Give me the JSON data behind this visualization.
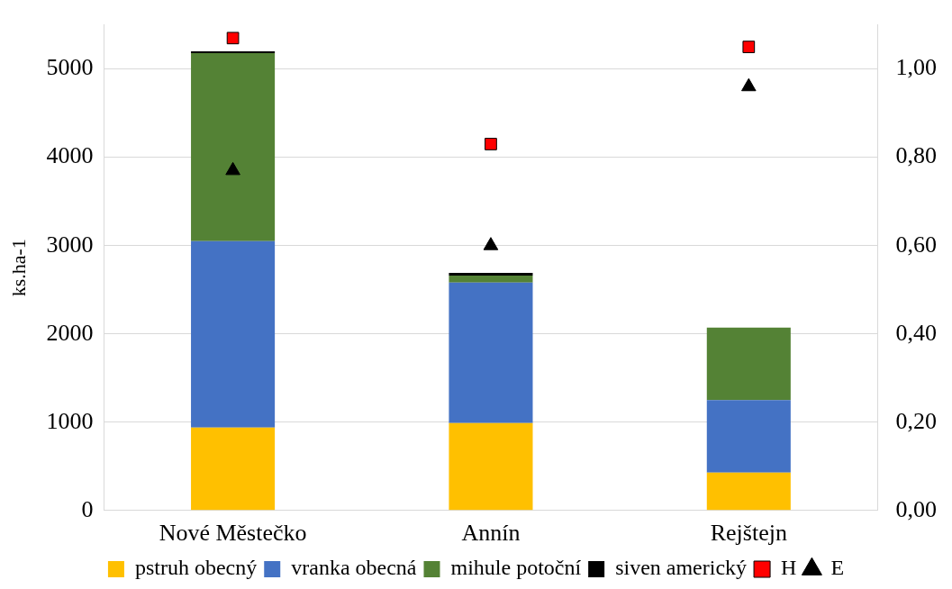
{
  "chart_data": {
    "type": "bar",
    "stacked": true,
    "ylabel": "ks.ha-1",
    "categories": [
      "Nové Městečko",
      "Annín",
      "Rejštejn"
    ],
    "series": [
      {
        "name": "pstruh obecný",
        "color": "#ffc000",
        "values": [
          940,
          990,
          430
        ]
      },
      {
        "name": "vranka obecná",
        "color": "#4472c4",
        "values": [
          2110,
          1590,
          820
        ]
      },
      {
        "name": "mihule potoční",
        "color": "#548235",
        "values": [
          2130,
          80,
          820
        ]
      },
      {
        "name": "siven americký",
        "color": "#000000",
        "values": [
          20,
          30,
          0
        ]
      },
      {
        "name": "H",
        "type": "scatter",
        "axis": "y2",
        "marker": "square",
        "color": "#ff0000",
        "x": [
          "Nové Městečko",
          "Annín",
          "Rejštejn"
        ],
        "values": [
          1.07,
          0.83,
          1.05
        ]
      },
      {
        "name": "E",
        "type": "scatter",
        "axis": "y2",
        "marker": "triangle",
        "color": "#000000",
        "x": [
          "Nové Městečko",
          "Annín",
          "Rejštejn"
        ],
        "values": [
          0.77,
          0.6,
          0.96
        ]
      }
    ],
    "ylim": [
      0,
      5500
    ],
    "yticks": [
      0,
      1000,
      2000,
      3000,
      4000,
      5000
    ],
    "y2lim": [
      0,
      1.1
    ],
    "y2ticks": [
      {
        "value": 0,
        "label": "0,00"
      },
      {
        "value": 0.2,
        "label": "0,20"
      },
      {
        "value": 0.4,
        "label": "0,40"
      },
      {
        "value": 0.6,
        "label": "0,60"
      },
      {
        "value": 0.8,
        "label": "0,80"
      },
      {
        "value": 1,
        "label": "1,00"
      }
    ],
    "grid": "y",
    "legend": "bottom"
  }
}
